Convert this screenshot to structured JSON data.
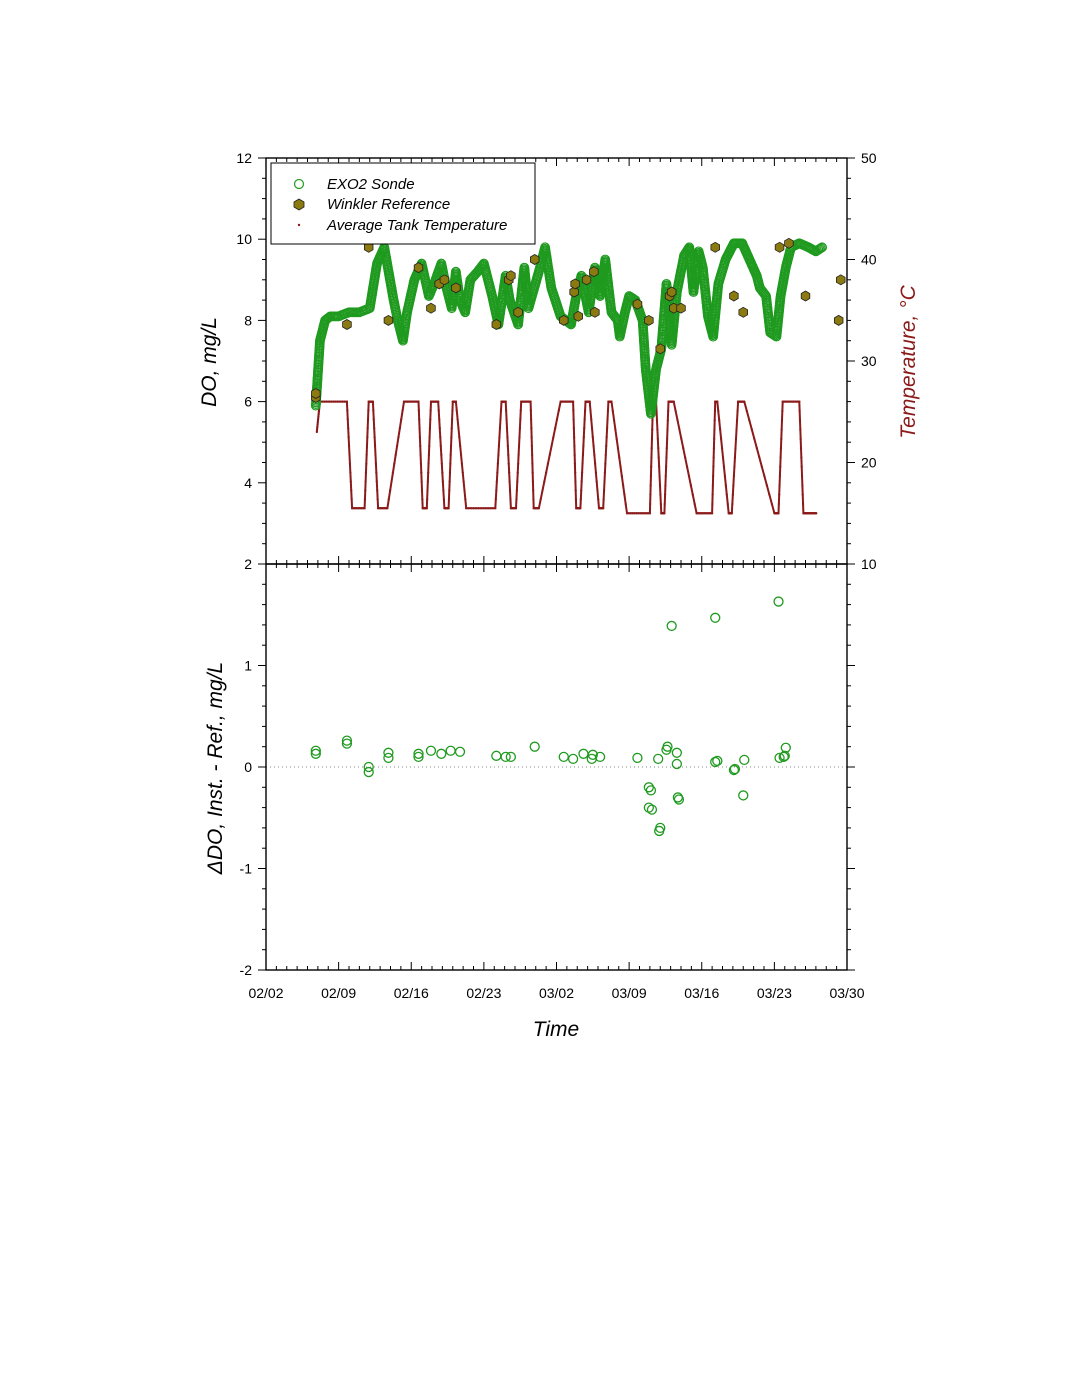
{
  "chart_data": [
    {
      "type": "scatter",
      "panel": "top",
      "ylabel": "DO, mg/L",
      "y2label": "Temperature, °C",
      "xlim_days_from_0202": [
        0,
        56
      ],
      "ylim": [
        2,
        12
      ],
      "y2lim": [
        10,
        50
      ],
      "yticks": [
        "2",
        "4",
        "6",
        "8",
        "10",
        "12"
      ],
      "y2ticks": [
        "10",
        "20",
        "30",
        "40",
        "50"
      ],
      "legend": {
        "position": "top-left",
        "entries": [
          {
            "label": "EXO2 Sonde",
            "color": "#2ca02c",
            "marker": "open-circle"
          },
          {
            "label": "Winkler Reference",
            "color": "#8b7a10",
            "marker": "filled-hexagon"
          },
          {
            "label": "Average Tank Temperature",
            "color": "#8b1a1a",
            "marker": "dot"
          }
        ]
      },
      "series": [
        {
          "name": "EXO2 Sonde",
          "x": [
            4.8,
            5.2,
            5.7,
            6.2,
            7,
            8,
            9,
            10,
            10.7,
            11.4,
            12.3,
            12.7,
            13.2,
            13.6,
            14.3,
            15,
            15.7,
            16.2,
            16.9,
            17.3,
            17.9,
            18.3,
            18.7,
            19.2,
            19.7,
            20.4,
            21,
            21.8,
            22.4,
            23.1,
            23.5,
            24.3,
            24.9,
            25.3,
            26.3,
            26.9,
            27.5,
            28.4,
            28.9,
            29.4,
            29.9,
            30.4,
            31.1,
            31.7,
            32.2,
            32.7,
            33.3,
            33.9,
            34.1,
            34.6,
            35,
            35.6,
            36.3,
            36.6,
            37.1,
            37.6,
            38.1,
            38.6,
            39.1,
            39.6,
            40.3,
            40.8,
            41.2,
            41.7,
            42.1,
            42.6,
            43.1,
            43.6,
            44.3,
            45.1,
            45.9,
            46.6,
            47.3,
            47.6,
            48.2,
            48.6,
            49.2,
            49.6,
            50.1,
            50.6,
            51.4,
            52.3,
            53,
            53.6
          ],
          "y": [
            5.9,
            7.5,
            8.0,
            8.1,
            8.1,
            8.2,
            8.2,
            8.3,
            9.4,
            9.8,
            8.5,
            8.0,
            7.5,
            8.2,
            9.0,
            9.4,
            8.6,
            8.9,
            9.4,
            8.9,
            8.3,
            9.2,
            8.5,
            8.2,
            9.0,
            9.2,
            9.4,
            8.6,
            7.9,
            9.1,
            8.5,
            7.9,
            9.3,
            8.3,
            9.2,
            9.8,
            8.8,
            8.1,
            8.0,
            7.9,
            8.6,
            9.1,
            8.2,
            9.3,
            8.6,
            9.5,
            8.2,
            8.0,
            7.6,
            8.2,
            8.6,
            8.5,
            8.0,
            6.8,
            5.7,
            6.8,
            7.3,
            8.9,
            7.4,
            8.7,
            9.6,
            9.8,
            8.7,
            9.7,
            9.3,
            8.1,
            7.6,
            8.9,
            9.5,
            9.9,
            9.9,
            9.5,
            9.1,
            8.8,
            8.6,
            7.7,
            7.6,
            8.6,
            9.3,
            9.8,
            9.9,
            9.8,
            9.7,
            9.8
          ]
        },
        {
          "name": "Winkler Reference",
          "x": [
            4.8,
            4.8,
            7.8,
            9.9,
            11.8,
            14.7,
            15.9,
            16.7,
            17.2,
            18.3,
            22.2,
            23.4,
            23.6,
            24.3,
            25.9,
            28.7,
            29.7,
            29.8,
            30.1,
            30.9,
            31.6,
            31.7,
            35.8,
            36.9,
            38.0,
            38.9,
            39.1,
            39.3,
            40.0,
            43.3,
            45.1,
            46.0,
            49.5,
            50.4,
            52.0,
            55.2,
            55.4
          ],
          "y": [
            6.1,
            6.2,
            7.9,
            9.8,
            8.0,
            9.3,
            8.3,
            8.9,
            9.0,
            8.8,
            7.9,
            9.0,
            9.1,
            8.2,
            9.5,
            8.0,
            8.7,
            8.9,
            8.1,
            9.0,
            9.2,
            8.2,
            8.4,
            8.0,
            7.3,
            8.6,
            8.7,
            8.3,
            8.3,
            9.8,
            8.6,
            8.2,
            9.8,
            9.9,
            8.6,
            8.0,
            9.0
          ]
        },
        {
          "name": "Average Tank Temperature",
          "axis": "right",
          "x": [
            4.9,
            5.2,
            7.8,
            8.3,
            9.5,
            9.9,
            10.3,
            10.8,
            11.7,
            13.3,
            14.7,
            15.1,
            15.5,
            15.9,
            16.6,
            17.2,
            17.6,
            18.0,
            18.3,
            19.3,
            22.1,
            22.7,
            23.1,
            23.6,
            24.1,
            24.6,
            25.5,
            25.8,
            26.3,
            28.4,
            29.6,
            29.9,
            30.3,
            30.8,
            31.2,
            32.1,
            32.5,
            33.0,
            33.3,
            34.8,
            37.0,
            37.3,
            37.6,
            38.1,
            38.4,
            38.8,
            39.3,
            41.5,
            43.0,
            43.3,
            43.5,
            44.6,
            44.9,
            45.5,
            46.1,
            49.0,
            49.4,
            49.8,
            51.4,
            51.8,
            52.4,
            53.1
          ],
          "y": [
            23,
            26,
            26,
            15.5,
            15.5,
            26,
            26,
            15.5,
            15.5,
            26,
            26,
            15.5,
            15.5,
            26,
            26,
            15.5,
            15.5,
            26,
            26,
            15.5,
            15.5,
            26,
            26,
            15.5,
            15.5,
            26,
            26,
            15.5,
            15.5,
            26,
            26,
            15.5,
            15.5,
            26,
            26,
            15.5,
            15.5,
            26,
            26,
            15,
            15,
            26,
            26,
            15,
            15,
            26,
            26,
            15,
            15,
            26,
            26,
            15,
            15,
            26,
            26,
            15,
            15,
            26,
            26,
            15,
            15,
            15
          ]
        }
      ]
    },
    {
      "type": "scatter",
      "panel": "bottom",
      "xlabel": "Time",
      "ylabel": "ΔDO, Inst. - Ref., mg/L",
      "xlim_days_from_0202": [
        0,
        56
      ],
      "ylim": [
        -2,
        2
      ],
      "yticks": [
        "-2",
        "-1",
        "0",
        "1",
        "2"
      ],
      "xticks": [
        {
          "day": 0,
          "label": "02/02"
        },
        {
          "day": 7,
          "label": "02/09"
        },
        {
          "day": 14,
          "label": "02/16"
        },
        {
          "day": 21,
          "label": "02/23"
        },
        {
          "day": 28,
          "label": "03/02"
        },
        {
          "day": 35,
          "label": "03/09"
        },
        {
          "day": 42,
          "label": "03/16"
        },
        {
          "day": 49,
          "label": "03/23"
        },
        {
          "day": 56,
          "label": "03/30"
        }
      ],
      "zero_line": true,
      "series": [
        {
          "name": "EXO2 Sonde",
          "x": [
            4.8,
            4.8,
            7.8,
            7.8,
            9.9,
            9.9,
            11.8,
            11.8,
            14.7,
            14.7,
            15.9,
            16.9,
            17.8,
            18.7,
            22.2,
            23.1,
            23.6,
            25.9,
            28.7,
            29.6,
            30.6,
            31.4,
            31.5,
            32.2,
            35.8,
            36.9,
            36.9,
            37.1,
            37.2,
            37.8,
            37.9,
            38.0,
            38.6,
            38.7,
            39.1,
            39.6,
            39.6,
            39.7,
            39.8,
            43.3,
            43.3,
            43.5,
            45.1,
            45.2,
            46.1,
            46.0,
            49.4,
            49.5,
            49.9,
            50.0,
            50.1
          ],
          "y": [
            0.13,
            0.16,
            0.23,
            0.26,
            -0.05,
            0.0,
            0.09,
            0.14,
            0.1,
            0.13,
            0.16,
            0.13,
            0.16,
            0.15,
            0.11,
            0.1,
            0.1,
            0.2,
            0.1,
            0.08,
            0.13,
            0.08,
            0.12,
            0.1,
            0.09,
            -0.2,
            -0.4,
            -0.23,
            -0.42,
            0.08,
            -0.63,
            -0.6,
            0.17,
            0.2,
            1.39,
            0.03,
            0.14,
            -0.3,
            -0.32,
            1.47,
            0.05,
            0.06,
            -0.03,
            -0.02,
            0.07,
            -0.28,
            1.63,
            0.09,
            0.1,
            0.11,
            0.19
          ]
        }
      ]
    }
  ]
}
